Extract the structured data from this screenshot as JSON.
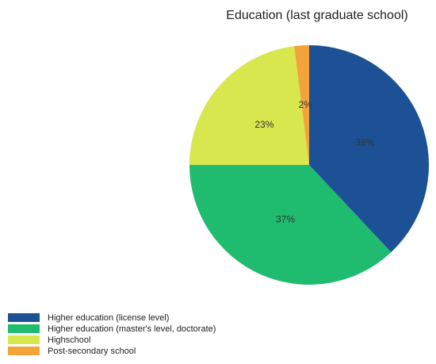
{
  "chart_data": {
    "type": "pie",
    "title": "Education (last graduate school)",
    "categories": [
      "Higher education (license level)",
      "Higher education (master's level, doctorate)",
      "Highschool",
      "Post-secondary school"
    ],
    "values": [
      38,
      37,
      23,
      2
    ],
    "value_labels": [
      "38%",
      "37%",
      "23%",
      "2%"
    ],
    "colors": [
      "#1c5295",
      "#1fbb6e",
      "#d9e74f",
      "#f2a43a"
    ],
    "legend": "bottom-left"
  }
}
